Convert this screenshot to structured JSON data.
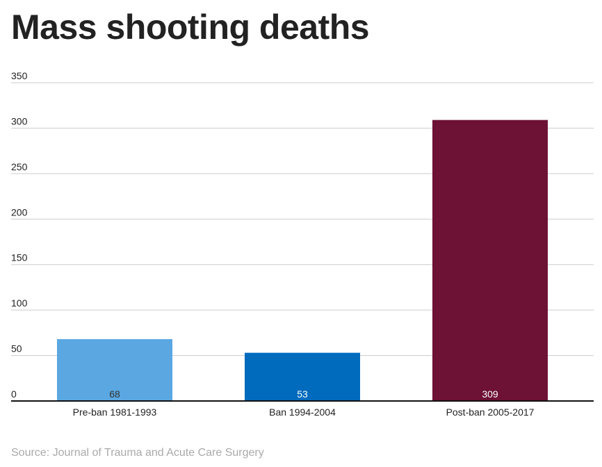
{
  "chart_data": {
    "type": "bar",
    "title": "Mass shooting deaths",
    "categories": [
      "Pre-ban 1981-1993",
      "Ban 1994-2004",
      "Post-ban 2005-2017"
    ],
    "values": [
      68,
      53,
      309
    ],
    "data_labels": [
      "68",
      "53",
      "309"
    ],
    "colors": [
      "#5aa7e1",
      "#006bbd",
      "#6d1135"
    ],
    "ylim": [
      0,
      350
    ],
    "yticks": [
      0,
      50,
      100,
      150,
      200,
      250,
      300,
      350
    ],
    "xlabel": "",
    "ylabel": "",
    "grid": true,
    "source": "Source: Journal of Trauma and Acute Care Surgery"
  }
}
